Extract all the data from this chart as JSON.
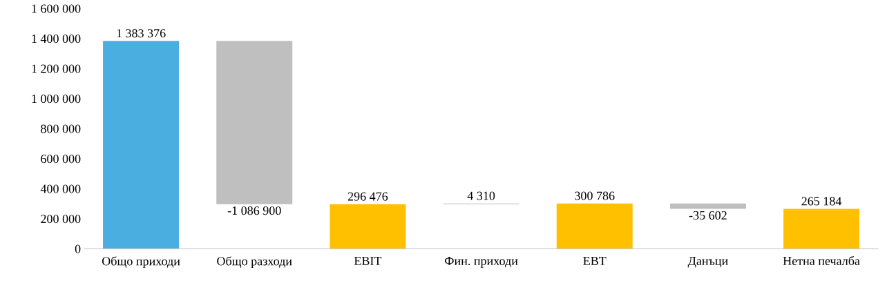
{
  "chart_data": {
    "type": "bar",
    "categories": [
      "Общо приходи",
      "Общо разходи",
      "EBIT",
      "Фин. приходи",
      "EBT",
      "Данъци",
      "Нетна печалба"
    ],
    "values": [
      1383376,
      -1086900,
      296476,
      4310,
      300786,
      -35602,
      265184
    ],
    "base": [
      0,
      1383376,
      0,
      296476,
      0,
      300786,
      0
    ],
    "colors": [
      "#4aafe0",
      "#bfbfbf",
      "#ffc000",
      "#bfbfbf",
      "#ffc000",
      "#bfbfbf",
      "#ffc000"
    ],
    "value_labels": [
      "1 383 376",
      "-1 086 900",
      "296 476",
      "4 310",
      "300 786",
      "-35 602",
      "265 184"
    ],
    "ylim": [
      0,
      1600000
    ],
    "yticks": [
      {
        "value": 0,
        "label": "0"
      },
      {
        "value": 200000,
        "label": "200 000"
      },
      {
        "value": 400000,
        "label": "400 000"
      },
      {
        "value": 600000,
        "label": "600 000"
      },
      {
        "value": 800000,
        "label": "800 000"
      },
      {
        "value": 1000000,
        "label": "1 000 000"
      },
      {
        "value": 1200000,
        "label": "1 200 000"
      },
      {
        "value": 1400000,
        "label": "1 400 000"
      },
      {
        "value": 1600000,
        "label": "1 600 000"
      }
    ],
    "grid": false,
    "legend": false
  }
}
